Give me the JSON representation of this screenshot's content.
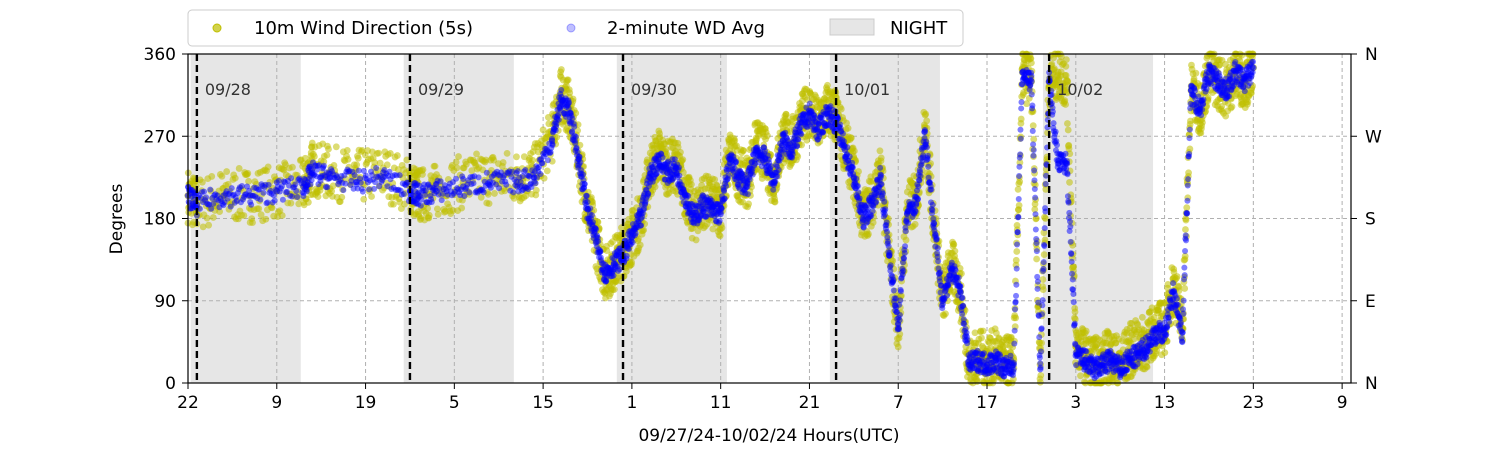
{
  "chart_data": {
    "type": "scatter",
    "title": "",
    "xlabel": "09/27/24-10/02/24  Hours(UTC)",
    "ylabel": "Degrees",
    "xlim": [
      22,
      153
    ],
    "ylim": [
      0,
      360
    ],
    "x_ticks": [
      {
        "pos": 22,
        "label": "22"
      },
      {
        "pos": 32,
        "label": "9"
      },
      {
        "pos": 42,
        "label": "19"
      },
      {
        "pos": 52,
        "label": "5"
      },
      {
        "pos": 62,
        "label": "15"
      },
      {
        "pos": 72,
        "label": "1"
      },
      {
        "pos": 82,
        "label": "11"
      },
      {
        "pos": 92,
        "label": "21"
      },
      {
        "pos": 102,
        "label": "7"
      },
      {
        "pos": 112,
        "label": "17"
      },
      {
        "pos": 122,
        "label": "3"
      },
      {
        "pos": 132,
        "label": "13"
      },
      {
        "pos": 142,
        "label": "23"
      },
      {
        "pos": 152,
        "label": "9"
      }
    ],
    "y_ticks": [
      0,
      90,
      180,
      270,
      360
    ],
    "y2_ticks": [
      {
        "value": 0,
        "label": "N"
      },
      {
        "value": 90,
        "label": "E"
      },
      {
        "value": 180,
        "label": "S"
      },
      {
        "value": 270,
        "label": "W"
      },
      {
        "value": 360,
        "label": "N"
      }
    ],
    "grid": true,
    "legend_position": "top-left",
    "legend": [
      {
        "label": "10m Wind Direction (5s)",
        "marker": "dot",
        "color": "#bfbf00"
      },
      {
        "label": "2-minute WD Avg",
        "marker": "dot",
        "color": "#0000ff"
      },
      {
        "label": "NIGHT",
        "marker": "patch",
        "color": "#e6e6e6"
      }
    ],
    "day_markers": [
      {
        "x": 23,
        "label": "09/28"
      },
      {
        "x": 47,
        "label": "09/29"
      },
      {
        "x": 71,
        "label": "09/30"
      },
      {
        "x": 95,
        "label": "10/01"
      },
      {
        "x": 119,
        "label": "10/02"
      }
    ],
    "night_spans": [
      [
        22.3,
        34.7
      ],
      [
        46.3,
        58.7
      ],
      [
        70.3,
        82.7
      ],
      [
        94.3,
        106.7
      ],
      [
        118.3,
        130.7
      ]
    ],
    "series": [
      {
        "name": "10m Wind Direction (5s)",
        "color": "#bfbf00",
        "spread": 30,
        "x": [
          22,
          23,
          26,
          29,
          32,
          35,
          36,
          38,
          41,
          44,
          47,
          48,
          50,
          53,
          56,
          59,
          61,
          63,
          64,
          65,
          66,
          67,
          68,
          69,
          70,
          71,
          72,
          73,
          74,
          75,
          76,
          77,
          78,
          79,
          80,
          81,
          82,
          83,
          84,
          85,
          86,
          87,
          88,
          89,
          90,
          91,
          92,
          93,
          94,
          95,
          96,
          97,
          98,
          99,
          100,
          101,
          102,
          103,
          104,
          105,
          106,
          107,
          108,
          109,
          110,
          111,
          112,
          113,
          114,
          115,
          116,
          117,
          118,
          119,
          120,
          121,
          122,
          123,
          124,
          125,
          126,
          127,
          128,
          129,
          130,
          131,
          132,
          133,
          134,
          135,
          136,
          137,
          138,
          139,
          140,
          141,
          142
        ],
        "y": [
          205,
          195,
          205,
          205,
          210,
          215,
          235,
          230,
          225,
          230,
          215,
          205,
          210,
          220,
          225,
          225,
          230,
          270,
          315,
          300,
          250,
          190,
          155,
          120,
          130,
          145,
          160,
          180,
          230,
          250,
          235,
          240,
          210,
          180,
          200,
          195,
          190,
          250,
          230,
          220,
          260,
          250,
          220,
          270,
          260,
          285,
          300,
          280,
          300,
          290,
          260,
          230,
          180,
          200,
          230,
          140,
          60,
          190,
          200,
          280,
          180,
          90,
          130,
          100,
          20,
          30,
          25,
          30,
          20,
          25,
          340,
          330,
          20,
          330,
          340,
          330,
          40,
          30,
          20,
          25,
          30,
          20,
          35,
          40,
          45,
          60,
          60,
          110,
          60,
          320,
          300,
          340,
          330,
          320,
          340,
          330,
          345
        ]
      },
      {
        "name": "2-minute WD Avg",
        "color": "#0000ff",
        "spread": 12,
        "x": [
          22,
          23,
          26,
          29,
          32,
          35,
          36,
          38,
          41,
          44,
          47,
          48,
          50,
          53,
          56,
          59,
          61,
          63,
          64,
          65,
          66,
          67,
          68,
          69,
          70,
          71,
          72,
          73,
          74,
          75,
          76,
          77,
          78,
          79,
          80,
          81,
          82,
          83,
          84,
          85,
          86,
          87,
          88,
          89,
          90,
          91,
          92,
          93,
          94,
          95,
          96,
          97,
          98,
          99,
          100,
          101,
          102,
          103,
          104,
          105,
          106,
          107,
          108,
          109,
          110,
          111,
          112,
          113,
          114,
          115,
          116,
          117,
          118,
          119,
          120,
          121,
          122,
          123,
          124,
          125,
          126,
          127,
          128,
          129,
          130,
          131,
          132,
          133,
          134,
          135,
          136,
          137,
          138,
          139,
          140,
          141,
          142
        ],
        "y": [
          205,
          195,
          205,
          205,
          210,
          215,
          230,
          225,
          220,
          225,
          210,
          205,
          210,
          215,
          220,
          220,
          225,
          265,
          310,
          295,
          245,
          190,
          155,
          120,
          130,
          140,
          160,
          180,
          225,
          245,
          230,
          235,
          205,
          180,
          195,
          190,
          185,
          245,
          225,
          215,
          255,
          245,
          220,
          265,
          255,
          280,
          295,
          275,
          295,
          285,
          255,
          225,
          180,
          195,
          225,
          140,
          60,
          185,
          195,
          275,
          175,
          90,
          125,
          100,
          20,
          25,
          20,
          25,
          15,
          20,
          340,
          330,
          15,
          330,
          240,
          240,
          30,
          25,
          15,
          20,
          25,
          15,
          25,
          30,
          40,
          55,
          55,
          100,
          55,
          320,
          300,
          340,
          330,
          320,
          340,
          330,
          345
        ]
      }
    ]
  }
}
